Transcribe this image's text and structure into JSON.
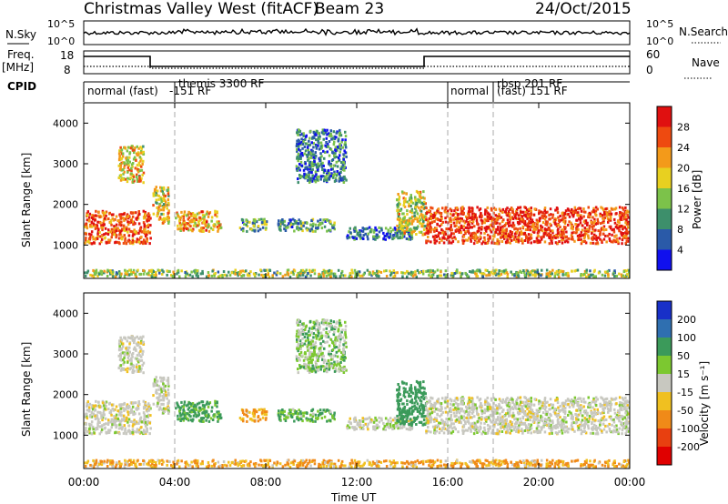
{
  "header": {
    "title": "Christmas Valley West (fitACF)",
    "beam": "Beam 23",
    "date": "24/Oct/2015"
  },
  "top_panels": {
    "nsky": {
      "label": "N.Sky",
      "ticks": [
        "10^5",
        "10^0"
      ],
      "right_ticks": [
        "10^5",
        "10^0"
      ],
      "right_label": "N.Search"
    },
    "freq": {
      "label": "Freq.",
      "unit": "[MHz]",
      "left_ticks": [
        "18",
        "8"
      ],
      "right_ticks": [
        "60",
        "0"
      ],
      "right_label": "Nave"
    },
    "cpid": {
      "label": "CPID",
      "segments": [
        "normal (fast)",
        "themis 3300 RF",
        "-151 RF",
        "normal",
        "rbsp 201 RF",
        "(fast) 151 RF"
      ]
    }
  },
  "x_axis": {
    "title": "Time UT",
    "ticks": [
      "00:00",
      "04:00",
      "08:00",
      "12:00",
      "16:00",
      "20:00",
      "00:00"
    ]
  },
  "power_panel": {
    "ylabel": "Slant Range [km]",
    "yticks": [
      "1000",
      "2000",
      "3000",
      "4000"
    ],
    "colorbar_label": "Power [dB]",
    "colorbar_ticks": [
      "4",
      "8",
      "12",
      "16",
      "20",
      "24",
      "28"
    ],
    "colors": [
      "#1010ee",
      "#2a5aa8",
      "#3d8f6b",
      "#7cc24a",
      "#e8d020",
      "#f39a1a",
      "#ee4a10",
      "#e01010"
    ]
  },
  "velocity_panel": {
    "ylabel": "Slant Range [km]",
    "yticks": [
      "1000",
      "2000",
      "3000",
      "4000"
    ],
    "colorbar_label": "Velocity [m s⁻¹]",
    "colorbar_ticks": [
      "200",
      "100",
      "50",
      "15",
      "-15",
      "-50",
      "-100",
      "-200"
    ],
    "colors": [
      "#1830c8",
      "#2f6fb0",
      "#3b9a5a",
      "#7cc830",
      "#c8c8c0",
      "#f0c020",
      "#f08a18",
      "#e84010",
      "#e00000"
    ]
  },
  "chart_data": {
    "type": "heatmap",
    "x_range_hours": [
      0,
      24
    ],
    "y_range_km": [
      180,
      4500
    ],
    "power_scale_db": [
      0,
      30
    ],
    "velocity_scale_ms": [
      -250,
      250
    ],
    "cpid_switch_hours": [
      4,
      16,
      18
    ],
    "scatter_regions": [
      {
        "t_start": 0.0,
        "t_end": 2.9,
        "r_min": 1000,
        "r_max": 1800,
        "power_db": 24,
        "velocity": 0
      },
      {
        "t_start": 1.5,
        "t_end": 2.6,
        "r_min": 2500,
        "r_max": 3400,
        "power_db": 18,
        "velocity": 0
      },
      {
        "t_start": 3.0,
        "t_end": 3.7,
        "r_min": 1500,
        "r_max": 2400,
        "power_db": 17,
        "velocity": 0
      },
      {
        "t_start": 4.0,
        "t_end": 6.0,
        "r_min": 1300,
        "r_max": 1800,
        "power_db": 20,
        "velocity": 40
      },
      {
        "t_start": 6.8,
        "t_end": 8.0,
        "r_min": 1300,
        "r_max": 1600,
        "power_db": 10,
        "velocity": -30
      },
      {
        "t_start": 8.5,
        "t_end": 11.0,
        "r_min": 1300,
        "r_max": 1600,
        "power_db": 10,
        "velocity": 30
      },
      {
        "t_start": 9.3,
        "t_end": 11.5,
        "r_min": 2500,
        "r_max": 3800,
        "power_db": 8,
        "velocity": 20
      },
      {
        "t_start": 11.5,
        "t_end": 14.5,
        "r_min": 1100,
        "r_max": 1400,
        "power_db": 8,
        "velocity": 0
      },
      {
        "t_start": 13.7,
        "t_end": 15.0,
        "r_min": 1200,
        "r_max": 2300,
        "power_db": 16,
        "velocity": 50
      },
      {
        "t_start": 15.0,
        "t_end": 24.0,
        "r_min": 1000,
        "r_max": 1900,
        "power_db": 26,
        "velocity": 0
      },
      {
        "t_start": 0.0,
        "t_end": 24.0,
        "r_min": 180,
        "r_max": 350,
        "power_db": 14,
        "velocity": -30
      }
    ]
  }
}
